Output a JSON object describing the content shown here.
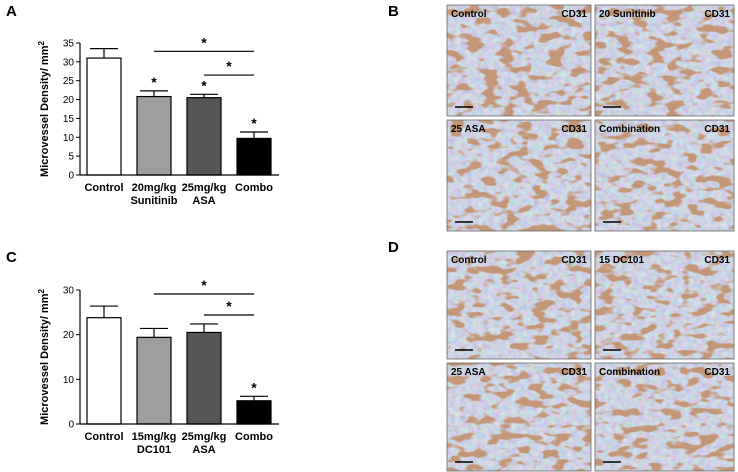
{
  "panels": {
    "A": "A",
    "B": "B",
    "C": "C",
    "D": "D"
  },
  "chart_data": [
    {
      "panel": "A",
      "type": "bar",
      "ylabel": "Microvessel Density/ mm",
      "ylabel_sup": "2",
      "ylim": [
        0,
        35
      ],
      "yticks": [
        0,
        5,
        10,
        15,
        20,
        25,
        30,
        35
      ],
      "categories": [
        [
          "Control"
        ],
        [
          "20mg/kg",
          "Sunitinib"
        ],
        [
          "25mg/kg",
          "ASA"
        ],
        [
          "Combo"
        ]
      ],
      "values": [
        31,
        20.8,
        20.5,
        9.7
      ],
      "errors": [
        2.5,
        1.5,
        0.9,
        1.7
      ],
      "bar_colors": [
        "#ffffff",
        "#9e9e9e",
        "#555555",
        "#000000"
      ],
      "bar_stars": [
        "",
        "*",
        "*",
        "*"
      ],
      "brackets": [
        {
          "from": 1,
          "to": 3,
          "at": 32.8,
          "label": "*"
        },
        {
          "from": 2,
          "to": 3,
          "at": 26.5,
          "label": "*"
        }
      ]
    },
    {
      "panel": "C",
      "type": "bar",
      "ylabel": "Microvessel Density/ mm",
      "ylabel_sup": "2",
      "ylim": [
        0,
        30
      ],
      "yticks": [
        0,
        10,
        20,
        30
      ],
      "categories": [
        [
          "Control"
        ],
        [
          "15mg/kg",
          "DC101"
        ],
        [
          "25mg/kg",
          "ASA"
        ],
        [
          "Combo"
        ]
      ],
      "values": [
        23.8,
        19.4,
        20.5,
        5.2
      ],
      "errors": [
        2.6,
        2.0,
        1.9,
        1.0
      ],
      "bar_colors": [
        "#ffffff",
        "#9e9e9e",
        "#555555",
        "#000000"
      ],
      "bar_stars": [
        "",
        "",
        "",
        "*"
      ],
      "brackets": [
        {
          "from": 1,
          "to": 3,
          "at": 29.1,
          "label": "*"
        },
        {
          "from": 2,
          "to": 3,
          "at": 24.4,
          "label": "*"
        }
      ]
    }
  ],
  "micrographs": {
    "B": [
      {
        "left": "Control",
        "right": "CD31"
      },
      {
        "left": "20 Sunitinib",
        "right": "CD31"
      },
      {
        "left": "25 ASA",
        "right": "CD31"
      },
      {
        "left": "Combination",
        "right": "CD31"
      }
    ],
    "D": [
      {
        "left": "Control",
        "right": "CD31"
      },
      {
        "left": "15 DC101",
        "right": "CD31"
      },
      {
        "left": "25 ASA",
        "right": "CD31"
      },
      {
        "left": "Combination",
        "right": "CD31"
      }
    ]
  }
}
